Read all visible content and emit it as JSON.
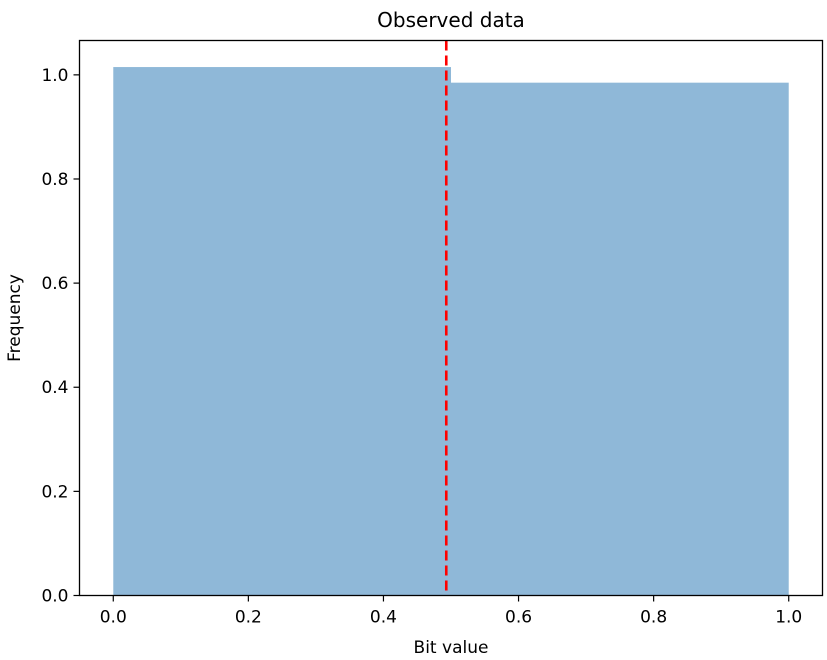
{
  "chart_data": {
    "type": "bar",
    "subtype": "histogram",
    "title": "Observed data",
    "xlabel": "Bit value",
    "ylabel": "Frequency",
    "bins": [
      {
        "x0": 0.0,
        "x1": 0.5,
        "value": 1.015
      },
      {
        "x0": 0.5,
        "x1": 1.0,
        "value": 0.985
      }
    ],
    "categories": [
      "0.0-0.5",
      "0.5-1.0"
    ],
    "values": [
      1.015,
      0.985
    ],
    "bar_color": "#8fb8d8",
    "vline": {
      "x": 0.493,
      "color": "#ff0000",
      "style": "dashed"
    },
    "xlim": [
      -0.05,
      1.05
    ],
    "ylim": [
      0.0,
      1.066
    ],
    "xticks": [
      0.0,
      0.2,
      0.4,
      0.6,
      0.8,
      1.0
    ],
    "xtick_labels": [
      "0.0",
      "0.2",
      "0.4",
      "0.6",
      "0.8",
      "1.0"
    ],
    "yticks": [
      0.0,
      0.2,
      0.4,
      0.6,
      0.8,
      1.0
    ],
    "ytick_labels": [
      "0.0",
      "0.2",
      "0.4",
      "0.6",
      "0.8",
      "1.0"
    ],
    "grid": false,
    "legend": null
  }
}
